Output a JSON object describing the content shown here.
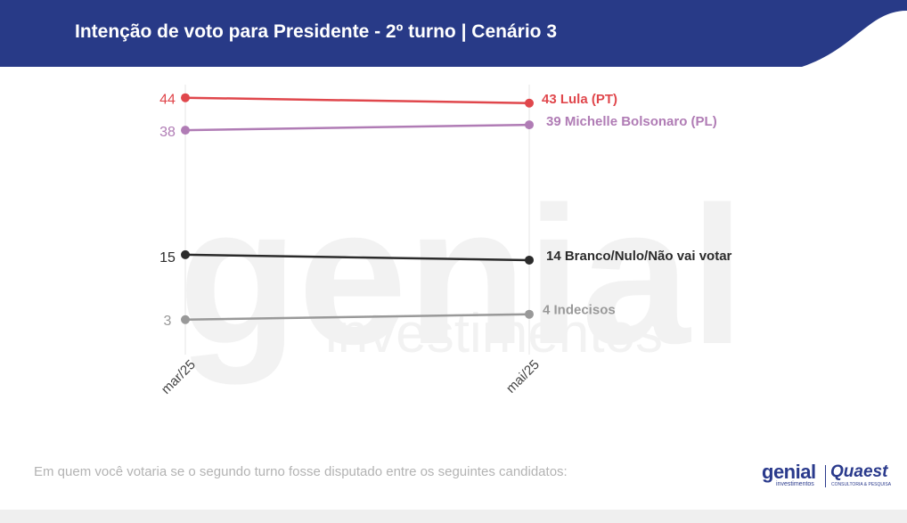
{
  "header": {
    "title": "Intenção de voto para Presidente - 2º turno | Cenário 3"
  },
  "colors": {
    "header_bg": "#283a87",
    "lula": "#e0474c",
    "michelle": "#b07cb5",
    "branco": "#2b2b2b",
    "indecisos": "#999999"
  },
  "chart_data": {
    "type": "line",
    "categories": [
      "mar/25",
      "mai/25"
    ],
    "series": [
      {
        "name": "Lula (PT)",
        "values": [
          44,
          43
        ],
        "color": "#e0474c"
      },
      {
        "name": "Michelle Bolsonaro (PL)",
        "values": [
          38,
          39
        ],
        "color": "#b07cb5"
      },
      {
        "name": "Branco/Nulo/Não vai votar",
        "values": [
          15,
          14
        ],
        "color": "#2b2b2b"
      },
      {
        "name": "Indecisos",
        "values": [
          3,
          4
        ],
        "color": "#999999"
      }
    ],
    "start_labels": [
      "44",
      "38",
      "15",
      "3"
    ],
    "end_labels": [
      "43 Lula (PT)",
      "39 Michelle Bolsonaro (PL)",
      "14 Branco/Nulo/Não vai votar",
      "4 Indecisos"
    ],
    "legend": "end-of-line labels",
    "grid": "vertical lines at categories"
  },
  "watermark": {
    "word1": "genial",
    "word2": "investimentos"
  },
  "footnote": "Em quem você votaria se o segundo turno fosse disputado entre os seguintes candidatos:",
  "logos": {
    "genial": "genial",
    "genial_sub": "investimentos",
    "quaest": "Quaest",
    "quaest_sub": "CONSULTORIA & PESQUISA"
  }
}
